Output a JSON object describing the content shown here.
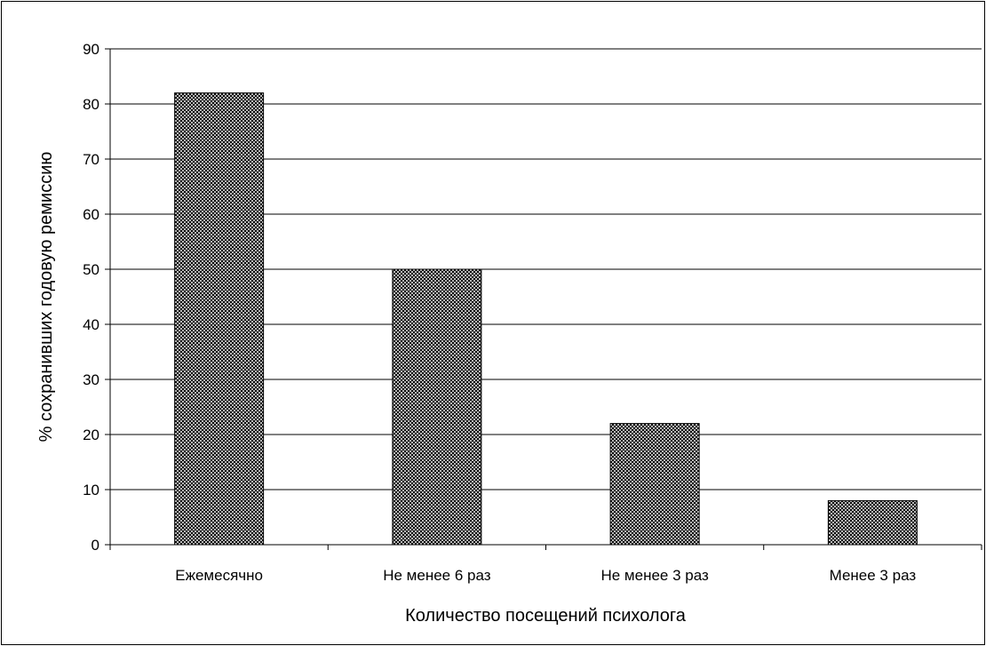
{
  "chart_data": {
    "type": "bar",
    "categories": [
      "Ежемесячно",
      "Не менее 6 раз",
      "Не менее 3 раз",
      "Менее 3 раз"
    ],
    "values": [
      82,
      50,
      22,
      8
    ],
    "title": "",
    "xlabel": "Количество посещений психолога",
    "ylabel": "% сохранивших годовую ремиссию",
    "ylim": [
      0,
      90
    ],
    "yticks": [
      0,
      10,
      20,
      30,
      40,
      50,
      60,
      70,
      80,
      90
    ],
    "grid": true,
    "legend": "none",
    "bar_fill": "crosshatch",
    "colors": {
      "bar_pattern_dark": "#000000",
      "bar_pattern_light": "#ffffff",
      "gridline": "#000000",
      "frame": "#000000",
      "background": "#ffffff"
    }
  }
}
